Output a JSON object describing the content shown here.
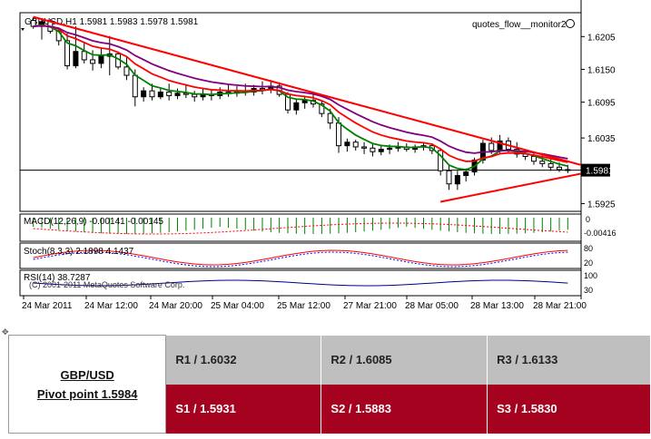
{
  "chart_data": {
    "type": "candlestick",
    "header": {
      "symbol_text": "GBPUSD,H1",
      "ohlc_text": "1.5981 1.5983 1.5978 1.5981",
      "expert_label": "quotes_flow__monitor2"
    },
    "price_axis": {
      "ticks": [
        "1.6205",
        "1.6150",
        "1.6095",
        "1.6035",
        "1.5925"
      ],
      "tick_values": [
        1.6205,
        1.615,
        1.6095,
        1.6035,
        1.5925
      ],
      "current_price": "1.5981",
      "current_value": 1.5981,
      "ylim": [
        1.5912,
        1.6245
      ]
    },
    "time_axis": {
      "ticks": [
        "24 Mar 2011",
        "24 Mar 12:00",
        "24 Mar 20:00",
        "25 Mar 04:00",
        "25 Mar 12:00",
        "27 Mar 21:00",
        "28 Mar 05:00",
        "28 Mar 13:00",
        "28 Mar 21:00"
      ]
    },
    "candles": [
      [
        1.6232,
        1.6238,
        1.6218,
        1.6222
      ],
      [
        1.6222,
        1.6236,
        1.62,
        1.623
      ],
      [
        1.623,
        1.6234,
        1.621,
        1.6214
      ],
      [
        1.6214,
        1.6218,
        1.619,
        1.6198
      ],
      [
        1.6198,
        1.621,
        1.615,
        1.6156
      ],
      [
        1.6156,
        1.6222,
        1.6152,
        1.618
      ],
      [
        1.618,
        1.6196,
        1.616,
        1.6166
      ],
      [
        1.6166,
        1.6182,
        1.6148,
        1.616
      ],
      [
        1.616,
        1.6186,
        1.6152,
        1.6172
      ],
      [
        1.6172,
        1.6206,
        1.614,
        1.6176
      ],
      [
        1.6176,
        1.618,
        1.615,
        1.6154
      ],
      [
        1.6154,
        1.6172,
        1.6132,
        1.614
      ],
      [
        1.614,
        1.615,
        1.6088,
        1.6104
      ],
      [
        1.6104,
        1.612,
        1.6096,
        1.6114
      ],
      [
        1.6114,
        1.6126,
        1.6098,
        1.6104
      ],
      [
        1.6104,
        1.6118,
        1.61,
        1.6112
      ],
      [
        1.6112,
        1.6126,
        1.6098,
        1.6106
      ],
      [
        1.6106,
        1.6118,
        1.61,
        1.611
      ],
      [
        1.611,
        1.6124,
        1.6102,
        1.6108
      ],
      [
        1.6108,
        1.6114,
        1.6096,
        1.6104
      ],
      [
        1.6104,
        1.6118,
        1.6098,
        1.6108
      ],
      [
        1.6108,
        1.6116,
        1.6098,
        1.6106
      ],
      [
        1.6106,
        1.612,
        1.61,
        1.6112
      ],
      [
        1.6112,
        1.6124,
        1.6104,
        1.611
      ],
      [
        1.611,
        1.6122,
        1.6104,
        1.6114
      ],
      [
        1.6114,
        1.6126,
        1.6106,
        1.6112
      ],
      [
        1.6112,
        1.6124,
        1.6106,
        1.6118
      ],
      [
        1.6118,
        1.613,
        1.6108,
        1.6116
      ],
      [
        1.6116,
        1.6132,
        1.611,
        1.6122
      ],
      [
        1.6122,
        1.6128,
        1.6104,
        1.6108
      ],
      [
        1.6108,
        1.6112,
        1.6076,
        1.6082
      ],
      [
        1.6082,
        1.61,
        1.6074,
        1.6094
      ],
      [
        1.6094,
        1.6104,
        1.6084,
        1.6098
      ],
      [
        1.6098,
        1.6108,
        1.6086,
        1.6092
      ],
      [
        1.6092,
        1.6098,
        1.607,
        1.6076
      ],
      [
        1.6076,
        1.6084,
        1.605,
        1.606
      ],
      [
        1.606,
        1.607,
        1.601,
        1.6022
      ],
      [
        1.6022,
        1.6034,
        1.6012,
        1.6028
      ],
      [
        1.6028,
        1.6032,
        1.6014,
        1.602
      ],
      [
        1.602,
        1.6028,
        1.6008,
        1.6018
      ],
      [
        1.6018,
        1.6026,
        1.6004,
        1.6012
      ],
      [
        1.6012,
        1.6022,
        1.6006,
        1.6016
      ],
      [
        1.6016,
        1.6024,
        1.6008,
        1.6018
      ],
      [
        1.6018,
        1.6028,
        1.6012,
        1.602
      ],
      [
        1.602,
        1.6026,
        1.6012,
        1.6016
      ],
      [
        1.6016,
        1.6024,
        1.601,
        1.602
      ],
      [
        1.602,
        1.6028,
        1.6014,
        1.6022
      ],
      [
        1.6022,
        1.6026,
        1.6008,
        1.6014
      ],
      [
        1.6014,
        1.6018,
        1.5972,
        1.598
      ],
      [
        1.598,
        1.599,
        1.5948,
        1.5958
      ],
      [
        1.5958,
        1.598,
        1.5948,
        1.5972
      ],
      [
        1.5972,
        1.5984,
        1.5962,
        1.5978
      ],
      [
        1.5978,
        1.6002,
        1.5972,
        1.5998
      ],
      [
        1.5998,
        1.6032,
        1.5992,
        1.6026
      ],
      [
        1.6026,
        1.6036,
        1.6008,
        1.6014
      ],
      [
        1.6014,
        1.604,
        1.601,
        1.603
      ],
      [
        1.603,
        1.6036,
        1.601,
        1.6016
      ],
      [
        1.6016,
        1.6028,
        1.6002,
        1.6008
      ],
      [
        1.6008,
        1.6016,
        1.5998,
        1.6004
      ],
      [
        1.6004,
        1.6012,
        1.599,
        1.5996
      ],
      [
        1.5996,
        1.6006,
        1.5986,
        1.5992
      ],
      [
        1.5992,
        1.6,
        1.598,
        1.5986
      ],
      [
        1.5986,
        1.5994,
        1.5978,
        1.5982
      ],
      [
        1.5982,
        1.599,
        1.5976,
        1.5981
      ]
    ],
    "trendlines": [
      {
        "name": "resistance",
        "from": [
          0,
          1.6238
        ],
        "to": [
          63,
          1.599
        ],
        "color": "#ff0000"
      },
      {
        "name": "support",
        "from": [
          48,
          1.5928
        ],
        "to": [
          63,
          1.5975
        ],
        "color": "#ff0000"
      }
    ],
    "indicators": {
      "macd_label": "MACD(12,26,9) -0.00141 -0.00145",
      "macd_axis": [
        "0",
        "-0.00416"
      ],
      "stoch_label": "Stoch(8,3,3) 2.1898 4.1437",
      "stoch_axis": [
        "80",
        "20"
      ],
      "rsi_label": "RSI(14) 38.7287",
      "rsi_axis": [
        "100",
        "30"
      ],
      "copyright": "(C) 2001-2011 MetaQuotes Software Corp."
    },
    "colors": {
      "up_candle": "#000000",
      "down_candle": "#ffffff",
      "ma_fast": "#008000",
      "ma_mid": "#ff0000",
      "ma_slow": "#800080",
      "trendline": "#ff0000",
      "macd_hist": "#008000",
      "macd_signal": "#ff0000",
      "stoch_main": "#ff0000",
      "stoch_signal": "#0000ff",
      "rsi": "#00008b"
    }
  },
  "pivot_table": {
    "pair": "GBP/USD",
    "pivot": "Pivot point 1.5984",
    "resistance": [
      "R1 / 1.6032",
      "R2 / 1.6085",
      "R3 / 1.6133"
    ],
    "support": [
      "S1 / 1.5931",
      "S2 / 1.5883",
      "S3 / 1.5830"
    ],
    "colors": {
      "resistance_bg": "#bfbfbf",
      "support_bg": "#a5021f"
    }
  }
}
